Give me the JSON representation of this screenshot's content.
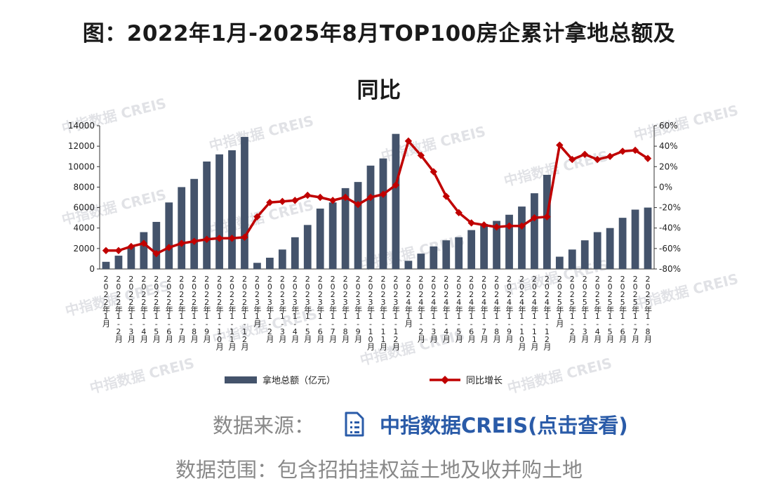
{
  "header": {
    "title_line1": "图：2022年1月-2025年8月TOP100房企累计拿地总额及",
    "title_line2": "同比"
  },
  "footer": {
    "source_label": "数据来源：",
    "source_link": "中指数据CREIS(点击查看)",
    "scope": "数据范围：包含招拍挂权益土地及收并购土地"
  },
  "watermark": "中指数据 CREIS",
  "colors": {
    "bar": "#44536b",
    "line": "#c00000"
  },
  "chart_data": {
    "type": "bar",
    "categories": [
      "2022年1月",
      "2022年1-2月",
      "2022年1-3月",
      "2022年1-4月",
      "2022年1-5月",
      "2022年1-6月",
      "2022年1-7月",
      "2022年1-8月",
      "2022年1-9月",
      "2022年1-10月",
      "2022年1-11月",
      "2022年1-12月",
      "2023年1月",
      "2023年1-2月",
      "2023年1-3月",
      "2023年1-4月",
      "2023年1-5月",
      "2023年1-6月",
      "2023年1-7月",
      "2023年1-8月",
      "2023年1-9月",
      "2023年1-10月",
      "2023年1-11月",
      "2023年1-12月",
      "2024年1月",
      "2024年1-2月",
      "2024年1-3月",
      "2024年1-4月",
      "2024年1-5月",
      "2024年1-6月",
      "2024年1-7月",
      "2024年1-8月",
      "2024年1-9月",
      "2024年1-10月",
      "2024年1-11月",
      "2024年1-12月",
      "2025年1月",
      "2025年1-2月",
      "2025年1-3月",
      "2025年1-4月",
      "2025年1-5月",
      "2025年1-6月",
      "2025年1-7月",
      "2025年1-8月"
    ],
    "series": [
      {
        "name": "拿地总额（亿元）",
        "type": "bar",
        "axis": "left",
        "values": [
          700,
          1300,
          2200,
          3600,
          4600,
          6500,
          8000,
          8800,
          10500,
          11200,
          11600,
          12900,
          600,
          1100,
          1900,
          3100,
          4300,
          5900,
          6500,
          7900,
          8500,
          10100,
          10800,
          13200,
          800,
          1500,
          2200,
          2800,
          3100,
          3800,
          4400,
          4700,
          5300,
          6100,
          7400,
          9200,
          1200,
          1900,
          2800,
          3600,
          4000,
          5000,
          5800,
          6000
        ]
      },
      {
        "name": "同比增长",
        "type": "line",
        "axis": "right",
        "values": [
          -62,
          -62,
          -58,
          -55,
          -65,
          -59,
          -55,
          -53,
          -51,
          -50,
          -50,
          -49,
          -29,
          -15,
          -14,
          -13,
          -8,
          -10,
          -13,
          -10,
          -17,
          -10,
          -7,
          2,
          45,
          31,
          15,
          -9,
          -25,
          -35,
          -37,
          -39,
          -38,
          -38,
          -30,
          -29,
          41,
          27,
          32,
          27,
          30,
          35,
          36,
          28
        ]
      }
    ],
    "ylim_left": [
      0,
      14000
    ],
    "yticks_left": [
      "0",
      "2000",
      "4000",
      "6000",
      "8000",
      "10000",
      "12000",
      "14000"
    ],
    "ylim_right": [
      -80,
      60
    ],
    "yticks_right": [
      "-80%",
      "-60%",
      "-40%",
      "-20%",
      "0%",
      "20%",
      "40%",
      "60%"
    ],
    "legend_position": "bottom",
    "grid": false
  }
}
